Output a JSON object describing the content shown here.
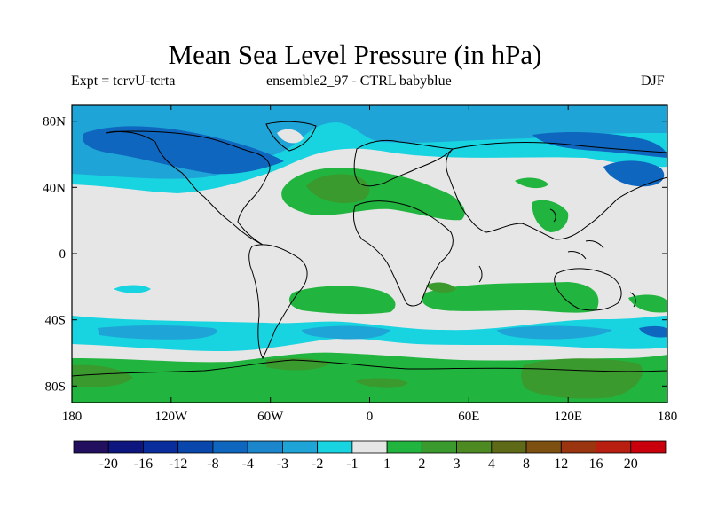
{
  "title": "Mean Sea Level Pressure (in hPa)",
  "subtitle_left": "Expt = tcrvU-tcrta",
  "subtitle_center": "ensemble2_97 - CTRL babyblue",
  "subtitle_right": "DJF",
  "lat_ticks": [
    "80N",
    "40N",
    "0",
    "40S",
    "80S"
  ],
  "lon_ticks": [
    "180",
    "120W",
    "60W",
    "0",
    "60E",
    "120E",
    "180"
  ],
  "colorbar": {
    "colors": [
      "#22105f",
      "#0d157f",
      "#092d9c",
      "#0a47ad",
      "#0f66be",
      "#1c86cc",
      "#1ea4d6",
      "#18d3e0",
      "#e6e6e6",
      "#21b43e",
      "#3a9a2e",
      "#4e8a22",
      "#5f6a18",
      "#7d5012",
      "#9a3510",
      "#b81f10",
      "#c9000c"
    ],
    "labels": [
      "-20",
      "-16",
      "-12",
      "-8",
      "-4",
      "-3",
      "-2",
      "-1",
      "1",
      "2",
      "3",
      "4",
      "8",
      "12",
      "16",
      "20"
    ]
  },
  "chart_data": {
    "type": "heatmap",
    "title": "Mean Sea Level Pressure (in hPa)",
    "units": "hPa",
    "season": "DJF",
    "lon_range": [
      -180,
      180
    ],
    "lat_range": [
      -90,
      90
    ],
    "levels": [
      -20,
      -16,
      -12,
      -8,
      -4,
      -3,
      -2,
      -1,
      1,
      2,
      3,
      4,
      8,
      12,
      16,
      20
    ],
    "regions": [
      {
        "name": "arctic-high-latitude-belt",
        "sign": "negative",
        "class": "-2 to -1"
      },
      {
        "name": "north-pacific-low",
        "sign": "negative",
        "class": "-4 to -3"
      },
      {
        "name": "north-america-greenland-low",
        "sign": "negative",
        "class": "-4 to -3"
      },
      {
        "name": "west-pacific-low",
        "sign": "negative",
        "class": "-4 to -3"
      },
      {
        "name": "north-atlantic-high",
        "sign": "positive",
        "class": "3 to 4"
      },
      {
        "name": "mediterranean-high",
        "sign": "positive",
        "class": "1 to 2"
      },
      {
        "name": "east-asia-high",
        "sign": "positive",
        "class": "1 to 2"
      },
      {
        "name": "subtropical-south-atlantic-high",
        "sign": "positive",
        "class": "1 to 2"
      },
      {
        "name": "subtropical-indian-ocean-high",
        "sign": "positive",
        "class": "2 to 3"
      },
      {
        "name": "southern-ocean-low-belt",
        "sign": "negative",
        "class": "-3 to -2"
      },
      {
        "name": "antarctic-high",
        "sign": "positive",
        "class": "2 to 4"
      }
    ]
  }
}
